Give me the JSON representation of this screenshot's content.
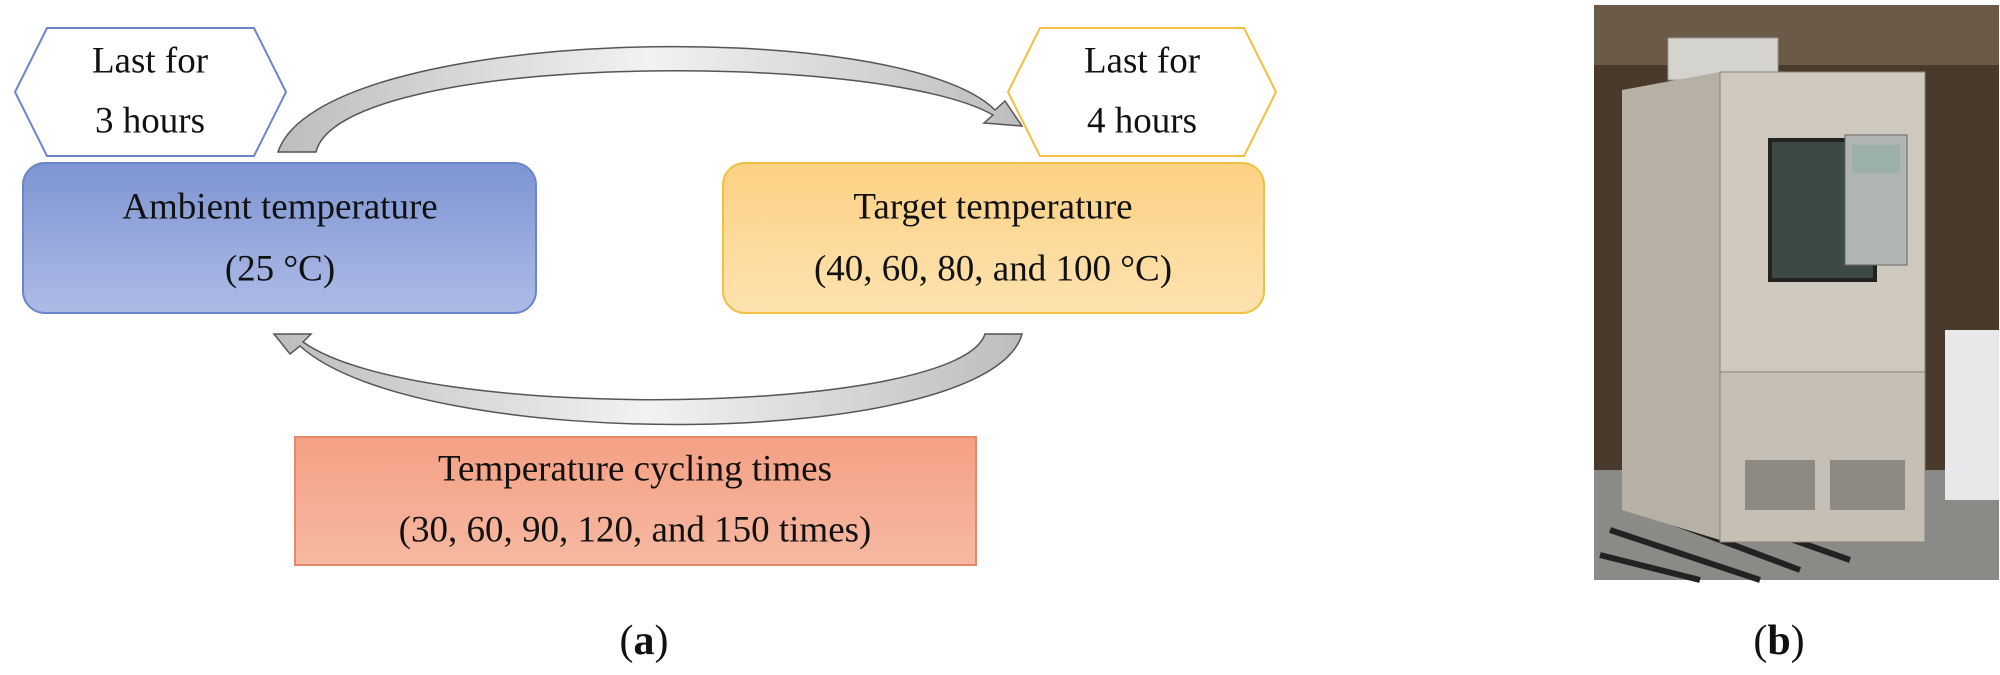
{
  "panel_a": {
    "left_note": {
      "lines": [
        "Last for",
        "3 hours"
      ]
    },
    "right_note": {
      "lines": [
        "Last for",
        "4 hours"
      ]
    },
    "ambient": {
      "lines": [
        "Ambient temperature",
        "(25 °C)"
      ]
    },
    "target": {
      "lines": [
        "Target temperature",
        "(40, 60, 80, and 100 °C)"
      ]
    },
    "cycling": {
      "lines": [
        "Temperature cycling times",
        "(30, 60, 90, 120, and 150 times)"
      ]
    },
    "caption": [
      "(",
      "a",
      ")"
    ]
  },
  "panel_b": {
    "caption": [
      "(",
      "b",
      ")"
    ]
  }
}
